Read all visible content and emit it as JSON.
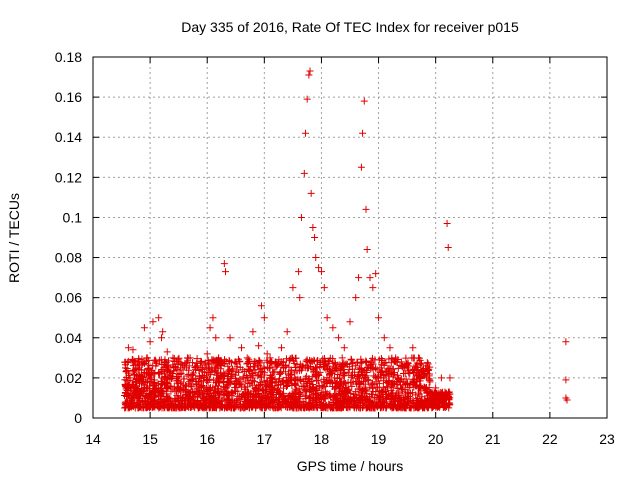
{
  "chart_data": {
    "type": "scatter",
    "title": "Day 335 of 2016, Rate Of TEC Index for receiver p015",
    "xlabel": "GPS time / hours",
    "ylabel": "ROTI / TECUs",
    "xlim": [
      14,
      23
    ],
    "ylim": [
      0,
      0.18
    ],
    "xticks": [
      14,
      15,
      16,
      17,
      18,
      19,
      20,
      21,
      22,
      23
    ],
    "yticks": [
      "0",
      "0.02",
      "0.04",
      "0.06",
      "0.08",
      "0.1",
      "0.12",
      "0.14",
      "0.16",
      "0.18"
    ],
    "grid": true,
    "marker": "plus",
    "color": "#e00000",
    "series": [
      {
        "name": "ROTI",
        "x": [
          14.6,
          14.62,
          14.65,
          14.7,
          14.72,
          14.8,
          14.85,
          14.9,
          14.95,
          15.0,
          15.02,
          15.05,
          15.1,
          15.15,
          15.2,
          15.22,
          15.25,
          15.3,
          15.4,
          15.5,
          15.6,
          15.7,
          15.8,
          15.9,
          16.0,
          16.05,
          16.1,
          16.15,
          16.2,
          16.3,
          16.32,
          16.4,
          16.5,
          16.6,
          16.7,
          16.8,
          16.9,
          16.95,
          17.0,
          17.05,
          17.1,
          17.2,
          17.3,
          17.4,
          17.5,
          17.6,
          17.62,
          17.65,
          17.7,
          17.72,
          17.75,
          17.78,
          17.8,
          17.82,
          17.85,
          17.88,
          17.9,
          17.95,
          18.0,
          18.05,
          18.1,
          18.2,
          18.3,
          18.4,
          18.5,
          18.6,
          18.65,
          18.7,
          18.72,
          18.75,
          18.78,
          18.8,
          18.85,
          18.9,
          18.95,
          19.0,
          19.1,
          19.2,
          19.3,
          19.4,
          19.5,
          19.6,
          19.7,
          19.8,
          19.9,
          20.0,
          20.1,
          20.2,
          20.22,
          20.25,
          22.28,
          22.28,
          22.28,
          22.3
        ],
        "y": [
          0.012,
          0.035,
          0.02,
          0.034,
          0.015,
          0.025,
          0.018,
          0.045,
          0.03,
          0.038,
          0.022,
          0.048,
          0.026,
          0.05,
          0.04,
          0.043,
          0.028,
          0.033,
          0.03,
          0.028,
          0.026,
          0.03,
          0.025,
          0.028,
          0.032,
          0.045,
          0.05,
          0.04,
          0.03,
          0.077,
          0.073,
          0.04,
          0.028,
          0.035,
          0.03,
          0.043,
          0.036,
          0.056,
          0.05,
          0.032,
          0.03,
          0.028,
          0.035,
          0.043,
          0.065,
          0.073,
          0.06,
          0.1,
          0.122,
          0.142,
          0.159,
          0.171,
          0.173,
          0.112,
          0.095,
          0.09,
          0.08,
          0.075,
          0.073,
          0.065,
          0.05,
          0.045,
          0.04,
          0.035,
          0.048,
          0.06,
          0.07,
          0.125,
          0.142,
          0.158,
          0.104,
          0.084,
          0.07,
          0.065,
          0.072,
          0.05,
          0.04,
          0.035,
          0.03,
          0.028,
          0.025,
          0.035,
          0.03,
          0.022,
          0.018,
          0.015,
          0.02,
          0.097,
          0.085,
          0.02,
          0.038,
          0.019,
          0.01,
          0.009
        ]
      }
    ],
    "noise_band": {
      "description": "dense cloud of points",
      "x_range": [
        14.55,
        20.25
      ],
      "y_floor": 0.005,
      "y_typical_max": 0.03
    }
  }
}
